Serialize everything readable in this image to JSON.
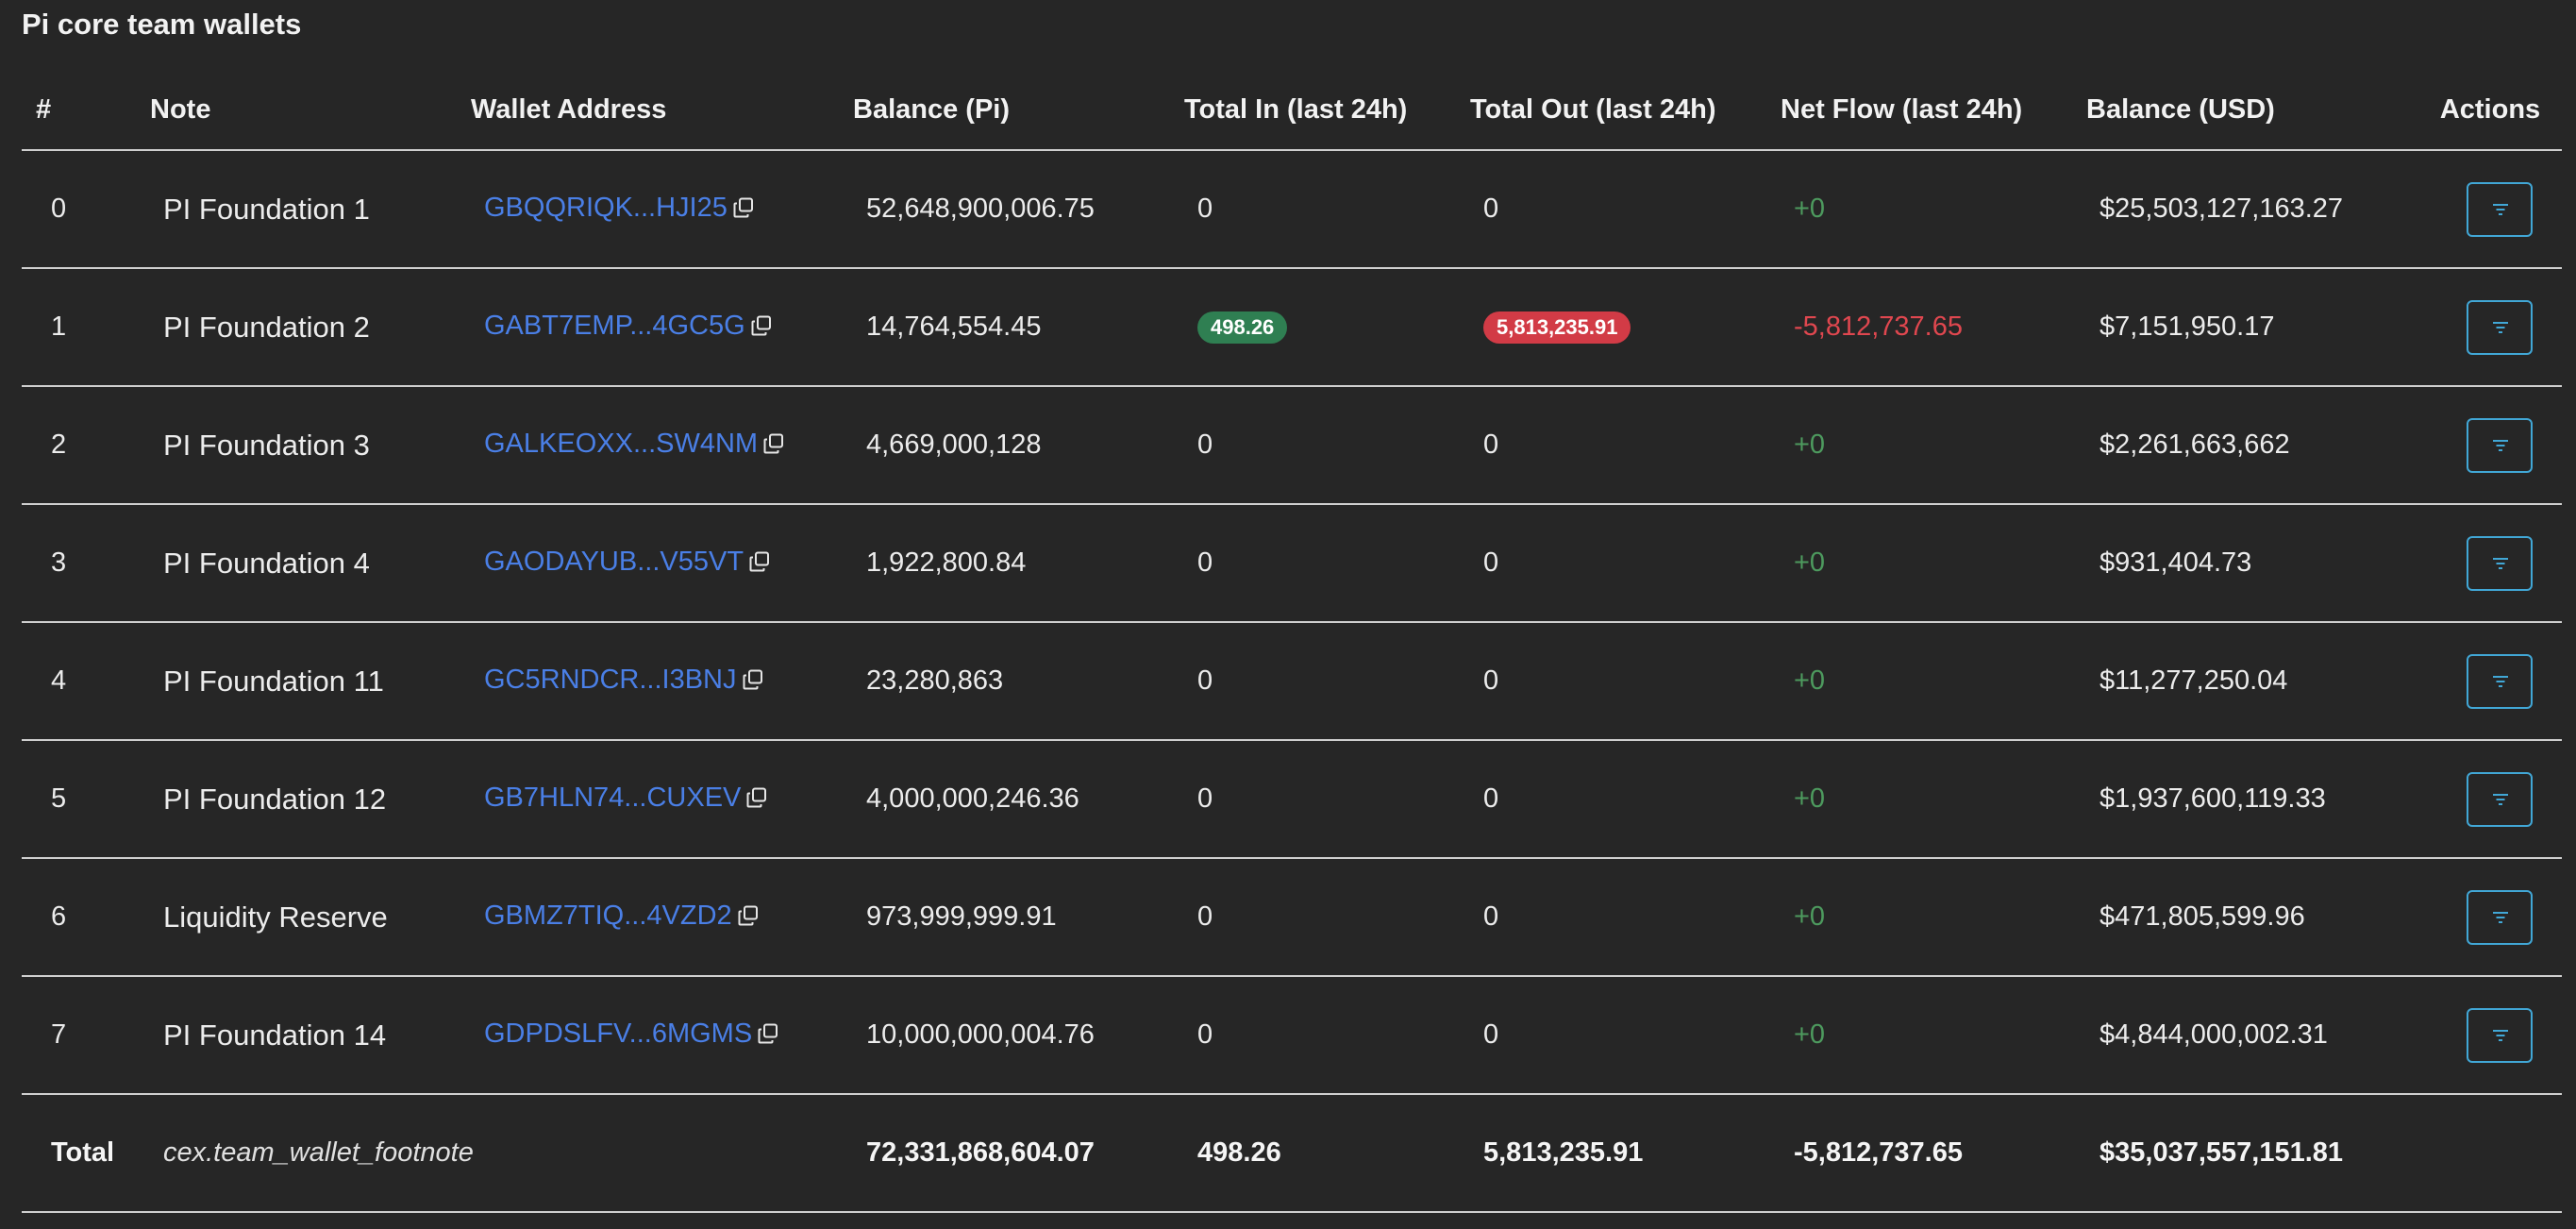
{
  "page": {
    "title": "Pi core team wallets"
  },
  "colors": {
    "link": "#4a7fe6",
    "positive": "#4d9a5e",
    "negative": "#e0474f",
    "badge_in": "#2f7f52",
    "badge_out": "#d23b46",
    "action_border": "#41a7d6"
  },
  "columns": {
    "index": "#",
    "note": "Note",
    "address": "Wallet Address",
    "balance_pi": "Balance (Pi)",
    "total_in": "Total In (last 24h)",
    "total_out": "Total Out (last 24h)",
    "net_flow": "Net Flow (last 24h)",
    "balance_usd": "Balance (USD)",
    "actions": "Actions"
  },
  "rows": [
    {
      "index": "0",
      "note": "PI Foundation 1",
      "address": "GBQQRIQK...HJI25",
      "balance_pi": "52,648,900,006.75",
      "total_in": "0",
      "total_out": "0",
      "net_flow": "+0",
      "balance_usd": "$25,503,127,163.27"
    },
    {
      "index": "1",
      "note": "PI Foundation 2",
      "address": "GABT7EMP...4GC5G",
      "balance_pi": "14,764,554.45",
      "total_in": "498.26",
      "total_out": "5,813,235.91",
      "net_flow": "-5,812,737.65",
      "balance_usd": "$7,151,950.17"
    },
    {
      "index": "2",
      "note": "PI Foundation 3",
      "address": "GALKEOXX...SW4NM",
      "balance_pi": "4,669,000,128",
      "total_in": "0",
      "total_out": "0",
      "net_flow": "+0",
      "balance_usd": "$2,261,663,662"
    },
    {
      "index": "3",
      "note": "PI Foundation 4",
      "address": "GAODAYUB...V55VT",
      "balance_pi": "1,922,800.84",
      "total_in": "0",
      "total_out": "0",
      "net_flow": "+0",
      "balance_usd": "$931,404.73"
    },
    {
      "index": "4",
      "note": "PI Foundation 11",
      "address": "GC5RNDCR...I3BNJ",
      "balance_pi": "23,280,863",
      "total_in": "0",
      "total_out": "0",
      "net_flow": "+0",
      "balance_usd": "$11,277,250.04"
    },
    {
      "index": "5",
      "note": "PI Foundation 12",
      "address": "GB7HLN74...CUXEV",
      "balance_pi": "4,000,000,246.36",
      "total_in": "0",
      "total_out": "0",
      "net_flow": "+0",
      "balance_usd": "$1,937,600,119.33"
    },
    {
      "index": "6",
      "note": "Liquidity Reserve",
      "address": "GBMZ7TIQ...4VZD2",
      "balance_pi": "973,999,999.91",
      "total_in": "0",
      "total_out": "0",
      "net_flow": "+0",
      "balance_usd": "$471,805,599.96"
    },
    {
      "index": "7",
      "note": "PI Foundation 14",
      "address": "GDPDSLFV...6MGMS",
      "balance_pi": "10,000,000,004.76",
      "total_in": "0",
      "total_out": "0",
      "net_flow": "+0",
      "balance_usd": "$4,844,000,002.31"
    }
  ],
  "total": {
    "label": "Total",
    "footnote": "cex.team_wallet_footnote",
    "balance_pi": "72,331,868,604.07",
    "total_in": "498.26",
    "total_out": "5,813,235.91",
    "net_flow": "-5,812,737.65",
    "balance_usd": "$35,037,557,151.81"
  }
}
